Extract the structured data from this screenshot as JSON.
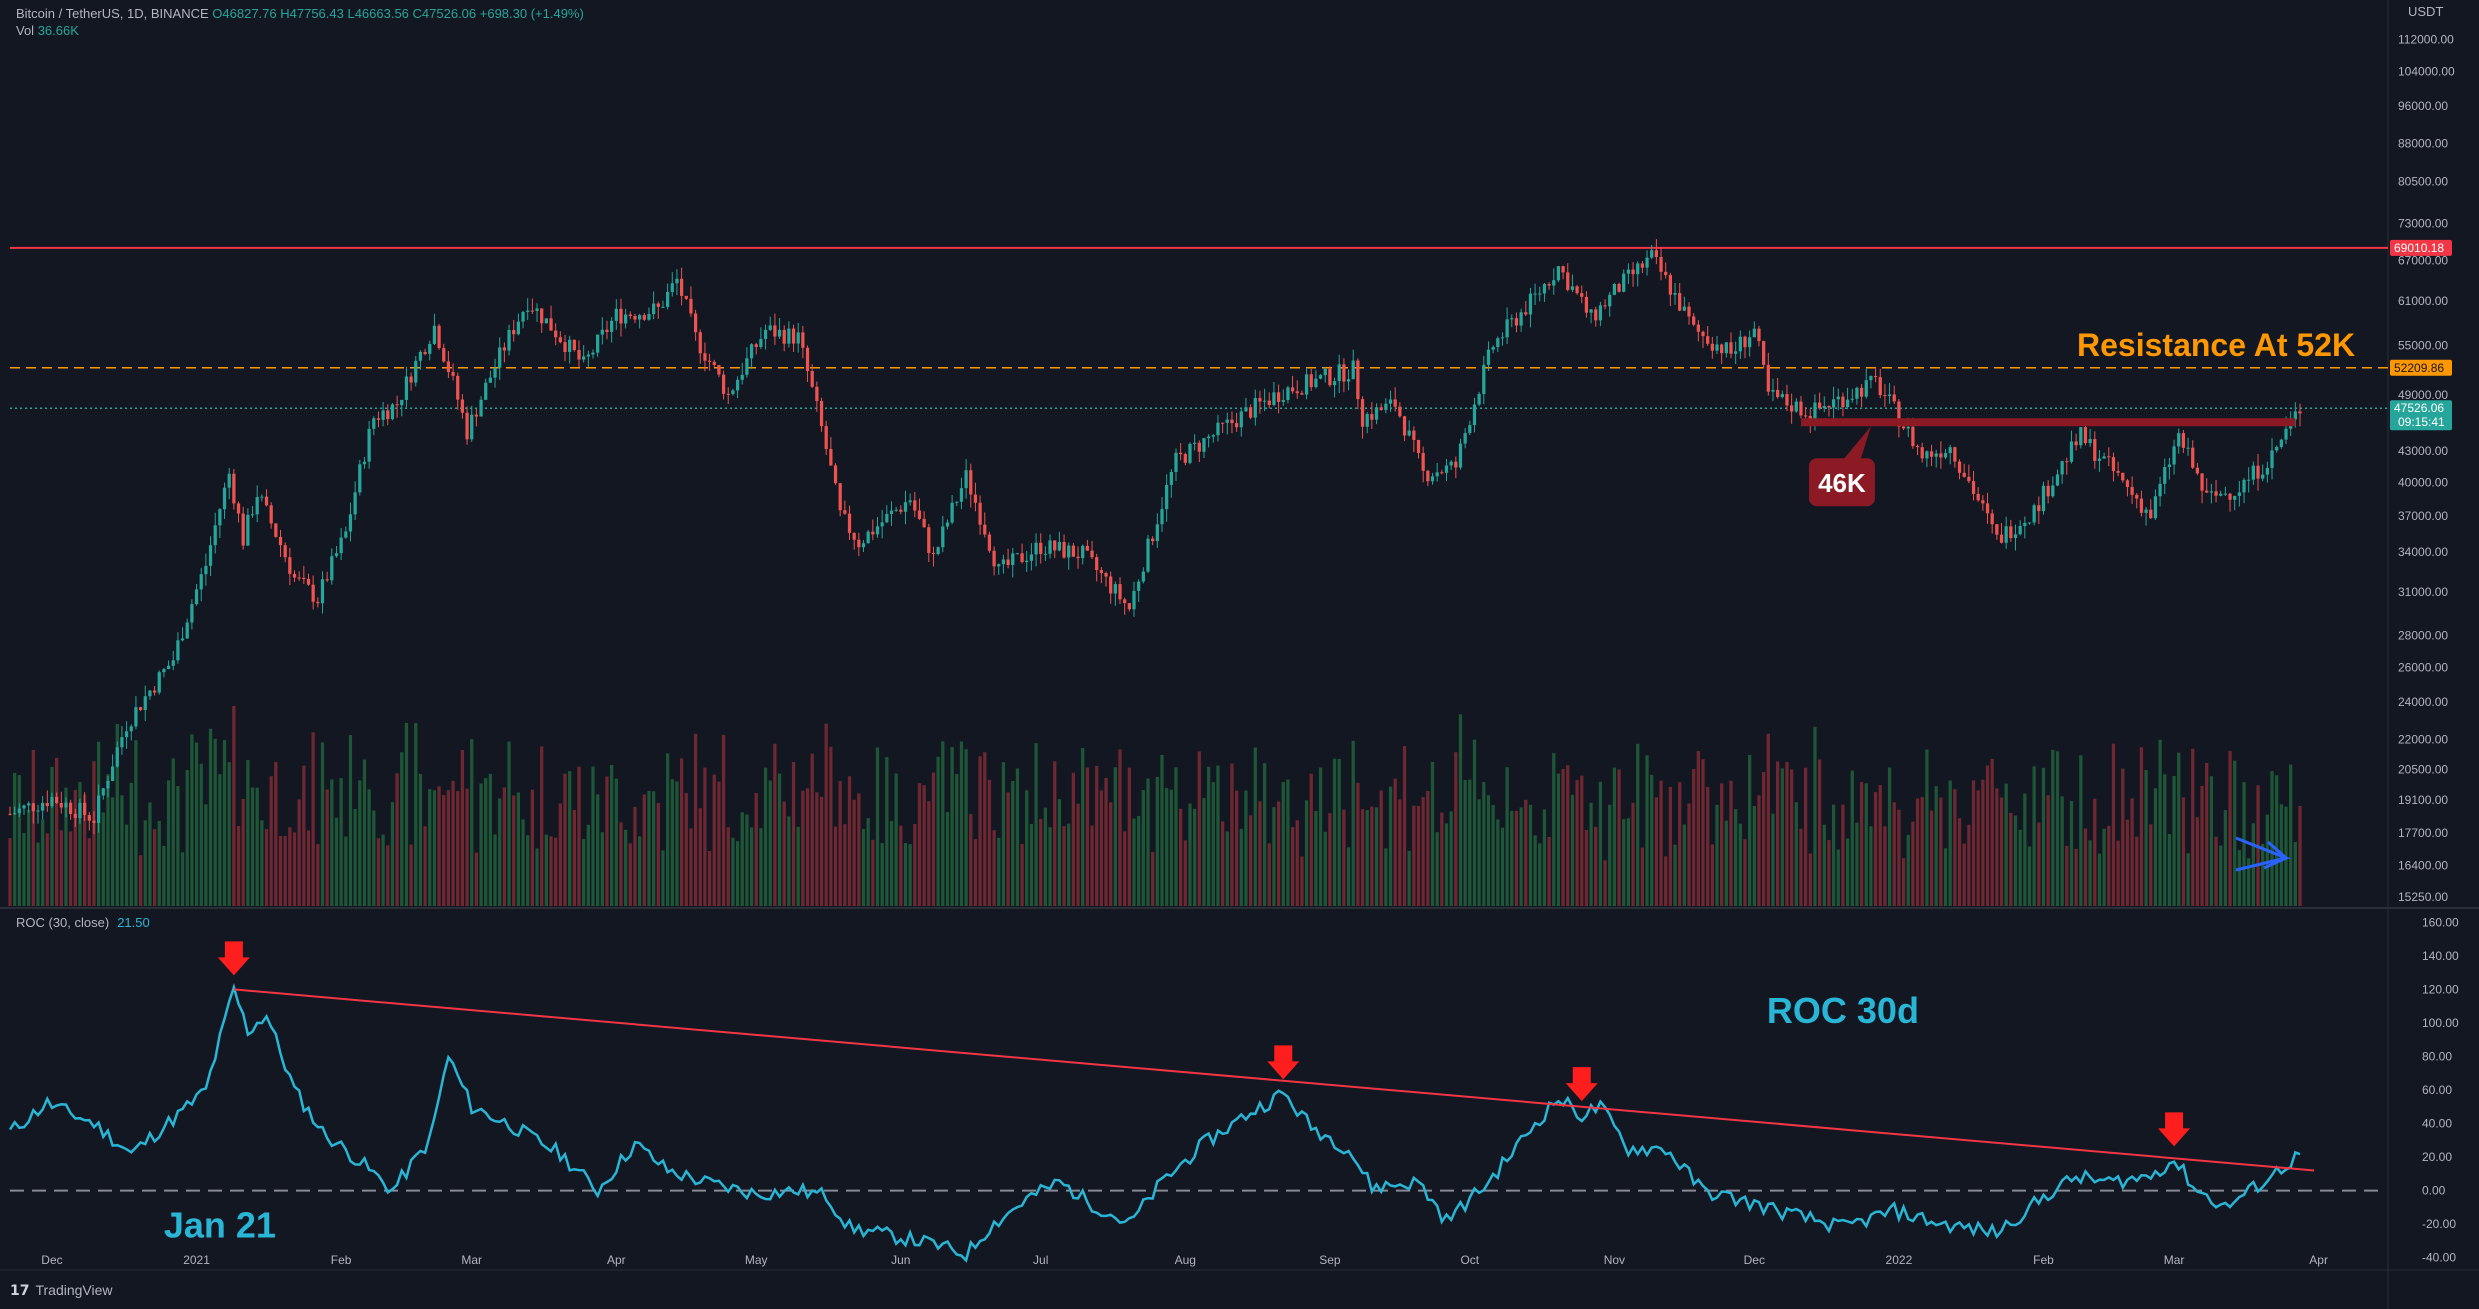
{
  "header": {
    "symbol": "Bitcoin / TetherUS, 1D, BINANCE",
    "ohlc_text": "O46827.76 H47756.43 L46663.56 C47526.06 +698.30 (+1.49%)",
    "vol_label": "Vol",
    "vol_value": "36.66K",
    "currency": "USDT"
  },
  "roc_legend": {
    "label": "ROC (30, close)",
    "value": "21.50"
  },
  "footer": {
    "brand": "TradingView"
  },
  "colors": {
    "background": "#131722",
    "up": "#26a69a",
    "down": "#ef5350",
    "resistance_red": "#f23645",
    "resistance_orange": "#ff9800",
    "roc_line": "#29b6d6",
    "arrow_red": "#ff1e1e",
    "arrow_blue": "#2962ff"
  },
  "chart_data": [
    {
      "type": "candlestick",
      "price_axis_labels": [
        "112000.00",
        "104000.00",
        "96000.00",
        "88000.00",
        "80500.00",
        "73000.00",
        "67000.00",
        "61000.00",
        "55000.00",
        "49000.00",
        "43000.00",
        "40000.00",
        "37000.00",
        "34000.00",
        "31000.00",
        "28000.00",
        "26000.00",
        "24000.00",
        "22000.00",
        "20500.00",
        "19100.00",
        "17700.00",
        "16400.00",
        "15250.00"
      ],
      "x_axis_labels": [
        "Dec",
        "2021",
        "Feb",
        "Mar",
        "Apr",
        "May",
        "Jun",
        "Jul",
        "Aug",
        "Sep",
        "Oct",
        "Nov",
        "Dec",
        "2022",
        "Feb",
        "Mar",
        "Apr"
      ],
      "x_axis_dates": [
        "2020-12-01",
        "2021-01-01",
        "2021-02-01",
        "2021-03-01",
        "2021-04-01",
        "2021-05-01",
        "2021-06-01",
        "2021-07-01",
        "2021-08-01",
        "2021-09-01",
        "2021-10-01",
        "2021-11-01",
        "2021-12-01",
        "2022-01-01",
        "2022-02-01",
        "2022-03-01",
        "2022-04-01"
      ],
      "x_range": [
        "2020-11-22",
        "2022-03-28"
      ],
      "y_scale": "log",
      "y_range": [
        15000,
        120000
      ],
      "price_path": [
        [
          "2020-11-22",
          18500
        ],
        [
          "2020-12-01",
          19200
        ],
        [
          "2020-12-10",
          18300
        ],
        [
          "2020-12-17",
          22800
        ],
        [
          "2020-12-27",
          26500
        ],
        [
          "2021-01-03",
          33000
        ],
        [
          "2021-01-08",
          40800
        ],
        [
          "2021-01-11",
          35000
        ],
        [
          "2021-01-14",
          39000
        ],
        [
          "2021-01-22",
          32000
        ],
        [
          "2021-01-27",
          30500
        ],
        [
          "2021-02-02",
          35500
        ],
        [
          "2021-02-08",
          46500
        ],
        [
          "2021-02-13",
          48000
        ],
        [
          "2021-02-21",
          57500
        ],
        [
          "2021-02-28",
          45000
        ],
        [
          "2021-03-13",
          61000
        ],
        [
          "2021-03-25",
          52500
        ],
        [
          "2021-04-01",
          59000
        ],
        [
          "2021-04-10",
          59800
        ],
        [
          "2021-04-14",
          64000
        ],
        [
          "2021-04-18",
          56000
        ],
        [
          "2021-04-25",
          49000
        ],
        [
          "2021-05-03",
          57000
        ],
        [
          "2021-05-10",
          56000
        ],
        [
          "2021-05-13",
          49500
        ],
        [
          "2021-05-19",
          37000
        ],
        [
          "2021-05-23",
          34800
        ],
        [
          "2021-06-03",
          38500
        ],
        [
          "2021-06-08",
          33500
        ],
        [
          "2021-06-15",
          40500
        ],
        [
          "2021-06-22",
          32500
        ],
        [
          "2021-07-01",
          34500
        ],
        [
          "2021-07-10",
          33800
        ],
        [
          "2021-07-20",
          29800
        ],
        [
          "2021-07-25",
          35500
        ],
        [
          "2021-07-30",
          42000
        ],
        [
          "2021-08-14",
          47000
        ],
        [
          "2021-08-22",
          49500
        ],
        [
          "2021-09-06",
          52000
        ],
        [
          "2021-09-08",
          46500
        ],
        [
          "2021-09-15",
          48000
        ],
        [
          "2021-09-21",
          40800
        ],
        [
          "2021-09-28",
          41500
        ],
        [
          "2021-10-06",
          55000
        ],
        [
          "2021-10-15",
          61500
        ],
        [
          "2021-10-20",
          66000
        ],
        [
          "2021-10-27",
          58500
        ],
        [
          "2021-11-02",
          63000
        ],
        [
          "2021-11-09",
          67500
        ],
        [
          "2021-11-18",
          57000
        ],
        [
          "2021-11-26",
          54000
        ],
        [
          "2021-12-01",
          57000
        ],
        [
          "2021-12-04",
          49000
        ],
        [
          "2021-12-13",
          47000
        ],
        [
          "2021-12-27",
          50500
        ],
        [
          "2022-01-06",
          42500
        ],
        [
          "2022-01-12",
          43500
        ],
        [
          "2022-01-22",
          35000
        ],
        [
          "2022-01-30",
          37500
        ],
        [
          "2022-02-09",
          44500
        ],
        [
          "2022-02-14",
          42000
        ],
        [
          "2022-02-24",
          37000
        ],
        [
          "2022-03-02",
          44500
        ],
        [
          "2022-03-08",
          38500
        ],
        [
          "2022-03-15",
          39500
        ],
        [
          "2022-03-22",
          42500
        ],
        [
          "2022-03-28",
          47526
        ]
      ],
      "levels": [
        {
          "label": "69010.18",
          "price": 69010.18,
          "style": "solid",
          "color": "#f23645"
        },
        {
          "label": "52209.86",
          "price": 52209.86,
          "style": "dashed",
          "color": "#ff9800"
        },
        {
          "label": "47526.06",
          "sub_label": "09:15:41",
          "price": 47526.06,
          "style": "dotted",
          "color": "#26a69a"
        }
      ],
      "support_46k": {
        "from": "2021-12-11",
        "to": "2022-03-27",
        "price": 46000
      },
      "annotations": [
        {
          "text": "Resistance At 52K",
          "color": "#ff9800"
        },
        {
          "text": "46K",
          "color": "#ffffff"
        }
      ]
    },
    {
      "type": "bar",
      "name": "Volume",
      "note": "Volume bars beneath the price candles, coloured by candle direction"
    },
    {
      "type": "line",
      "name": "ROC (30, close)",
      "y_axis_labels": [
        "160.00",
        "140.00",
        "120.00",
        "100.00",
        "80.00",
        "60.00",
        "40.00",
        "20.00",
        "0.00",
        "-20.00",
        "-40.00"
      ],
      "y_range": [
        -45,
        165
      ],
      "points": [
        [
          "2020-11-22",
          35
        ],
        [
          "2020-11-30",
          52
        ],
        [
          "2020-12-10",
          40
        ],
        [
          "2020-12-18",
          22
        ],
        [
          "2020-12-28",
          45
        ],
        [
          "2021-01-03",
          60
        ],
        [
          "2021-01-09",
          120
        ],
        [
          "2021-01-12",
          95
        ],
        [
          "2021-01-16",
          105
        ],
        [
          "2021-01-22",
          60
        ],
        [
          "2021-01-28",
          35
        ],
        [
          "2021-02-06",
          15
        ],
        [
          "2021-02-12",
          0
        ],
        [
          "2021-02-20",
          30
        ],
        [
          "2021-02-24",
          80
        ],
        [
          "2021-03-01",
          50
        ],
        [
          "2021-03-10",
          38
        ],
        [
          "2021-03-20",
          22
        ],
        [
          "2021-03-28",
          0
        ],
        [
          "2021-04-05",
          28
        ],
        [
          "2021-04-12",
          12
        ],
        [
          "2021-04-20",
          5
        ],
        [
          "2021-05-01",
          -2
        ],
        [
          "2021-05-10",
          0
        ],
        [
          "2021-05-16",
          -3
        ],
        [
          "2021-05-21",
          -22
        ],
        [
          "2021-06-01",
          -28
        ],
        [
          "2021-06-08",
          -32
        ],
        [
          "2021-06-15",
          -38
        ],
        [
          "2021-06-20",
          -22
        ],
        [
          "2021-06-28",
          -5
        ],
        [
          "2021-07-05",
          5
        ],
        [
          "2021-07-12",
          -8
        ],
        [
          "2021-07-20",
          -20
        ],
        [
          "2021-07-27",
          5
        ],
        [
          "2021-08-05",
          28
        ],
        [
          "2021-08-14",
          45
        ],
        [
          "2021-08-22",
          58
        ],
        [
          "2021-08-28",
          38
        ],
        [
          "2021-09-05",
          25
        ],
        [
          "2021-09-10",
          2
        ],
        [
          "2021-09-20",
          5
        ],
        [
          "2021-09-26",
          -18
        ],
        [
          "2021-10-05",
          5
        ],
        [
          "2021-10-15",
          40
        ],
        [
          "2021-10-20",
          55
        ],
        [
          "2021-10-25",
          45
        ],
        [
          "2021-10-29",
          50
        ],
        [
          "2021-11-04",
          25
        ],
        [
          "2021-11-12",
          25
        ],
        [
          "2021-11-20",
          0
        ],
        [
          "2021-12-01",
          -8
        ],
        [
          "2021-12-10",
          -15
        ],
        [
          "2021-12-20",
          -22
        ],
        [
          "2021-12-31",
          -12
        ],
        [
          "2022-01-10",
          -20
        ],
        [
          "2022-01-22",
          -25
        ],
        [
          "2022-02-03",
          0
        ],
        [
          "2022-02-08",
          8
        ],
        [
          "2022-02-15",
          5
        ],
        [
          "2022-02-23",
          8
        ],
        [
          "2022-03-01",
          18
        ],
        [
          "2022-03-06",
          0
        ],
        [
          "2022-03-12",
          -10
        ],
        [
          "2022-03-20",
          5
        ],
        [
          "2022-03-28",
          21.5
        ]
      ],
      "trendline": [
        [
          "2021-01-09",
          120
        ],
        [
          "2022-03-31",
          12
        ]
      ],
      "zero_line": 0,
      "arrow_marks": [
        "2021-01-09",
        "2021-08-22",
        "2021-10-25",
        "2022-03-01"
      ],
      "annotations": [
        {
          "text": "ROC 30d",
          "color": "#29b6d6"
        },
        {
          "text": "Jan 21",
          "color": "#29b6d6"
        }
      ]
    }
  ]
}
